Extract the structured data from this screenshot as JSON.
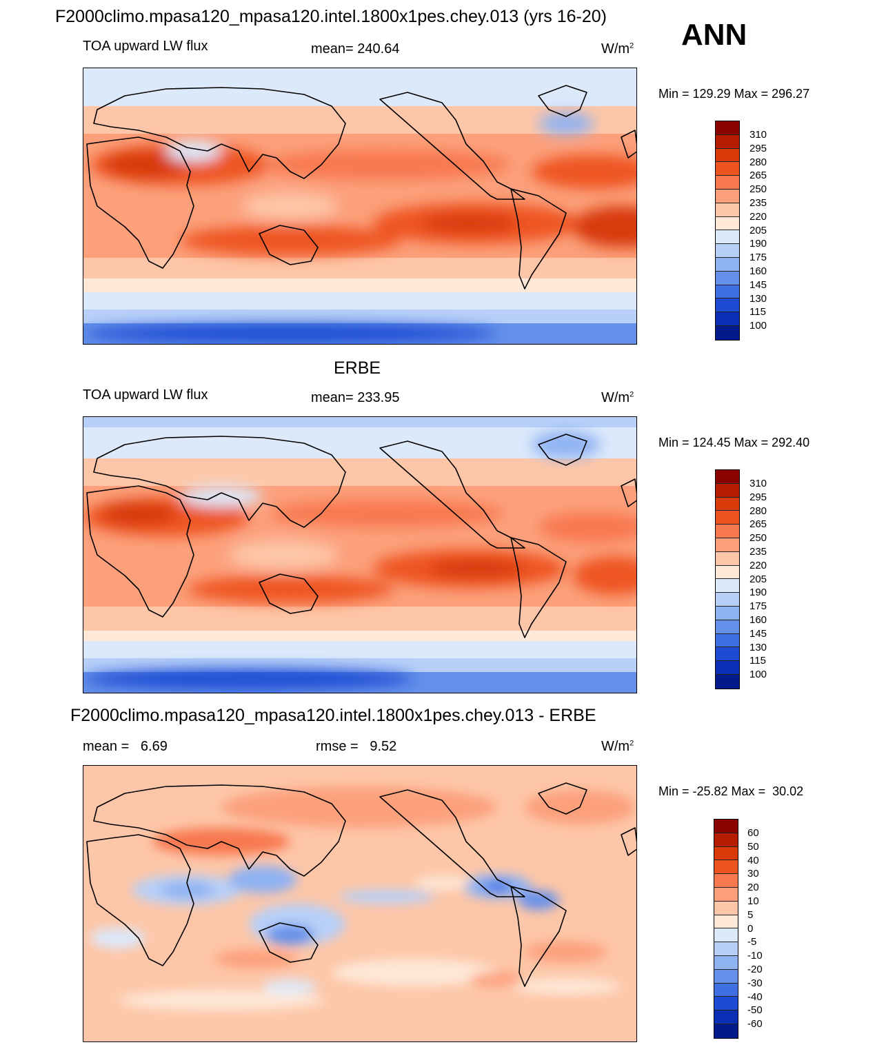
{
  "header": {
    "title": "F2000climo.mpasa120_mpasa120.intel.1800x1pes.chey.013 (yrs 16-20)",
    "season": "ANN"
  },
  "panels": [
    {
      "name": "model",
      "title": "",
      "variable": "TOA upward LW flux",
      "stat1": "mean= 240.64",
      "stat2": "",
      "units_base": "W/m",
      "units_exp": "2",
      "minmax": "Min = 129.29 Max = 296.27"
    },
    {
      "name": "obs",
      "title": "ERBE",
      "variable": "TOA upward LW flux",
      "stat1": "mean= 233.95",
      "stat2": "",
      "units_base": "W/m",
      "units_exp": "2",
      "minmax": "Min = 124.45 Max = 292.40"
    },
    {
      "name": "diff",
      "title": "F2000climo.mpasa120_mpasa120.intel.1800x1pes.chey.013 - ERBE",
      "variable": "",
      "stat1": "mean =   6.69",
      "stat2": "rmse =   9.52",
      "units_base": "W/m",
      "units_exp": "2",
      "minmax": "Min = -25.82 Max =  30.02"
    }
  ],
  "colorbars": {
    "absolute": {
      "labels": [
        "310",
        "295",
        "280",
        "265",
        "250",
        "235",
        "220",
        "205",
        "190",
        "175",
        "160",
        "145",
        "130",
        "115",
        "100"
      ],
      "colors": [
        "#8b0000",
        "#b51c00",
        "#d83a08",
        "#ee5420",
        "#f87850",
        "#fca07c",
        "#fdc6a8",
        "#fee8d8",
        "#dce9fb",
        "#b8d0f8",
        "#8fb2f3",
        "#6691ea",
        "#3f6fe0",
        "#1e4bd3",
        "#0a2fb5",
        "#011a8c"
      ]
    },
    "difference": {
      "labels": [
        "60",
        "50",
        "40",
        "30",
        "20",
        "10",
        "5",
        "0",
        "-5",
        "-10",
        "-20",
        "-30",
        "-40",
        "-50",
        "-60"
      ],
      "colors": [
        "#8b0000",
        "#b51c00",
        "#d83a08",
        "#ee5420",
        "#f87850",
        "#fca07c",
        "#fdc6a8",
        "#fee8d8",
        "#dce9fb",
        "#b8d0f8",
        "#8fb2f3",
        "#6691ea",
        "#3f6fe0",
        "#1e4bd3",
        "#0a2fb5",
        "#011a8c"
      ]
    }
  }
}
